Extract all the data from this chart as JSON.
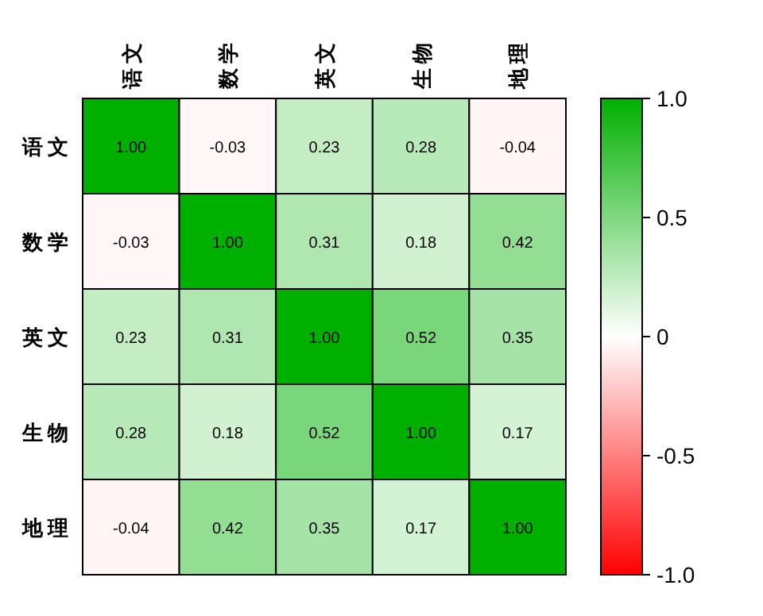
{
  "chart_data": {
    "type": "heatmap",
    "categories": [
      "语文",
      "数学",
      "英文",
      "生物",
      "地理"
    ],
    "y_categories": [
      "语文",
      "数学",
      "英文",
      "生物",
      "地理"
    ],
    "cells": [
      [
        1.0,
        -0.03,
        0.23,
        0.28,
        -0.04
      ],
      [
        -0.03,
        1.0,
        0.31,
        0.18,
        0.42
      ],
      [
        0.23,
        0.31,
        1.0,
        0.52,
        0.35
      ],
      [
        0.28,
        0.18,
        0.52,
        1.0,
        0.17
      ],
      [
        -0.04,
        0.42,
        0.35,
        0.17,
        1.0
      ]
    ],
    "cell_labels": [
      [
        "1.00",
        "-0.03",
        "0.23",
        "0.28",
        "-0.04"
      ],
      [
        "-0.03",
        "1.00",
        "0.31",
        "0.18",
        "0.42"
      ],
      [
        "0.23",
        "0.31",
        "1.00",
        "0.52",
        "0.35"
      ],
      [
        "0.28",
        "0.18",
        "0.52",
        "1.00",
        "0.17"
      ],
      [
        "-0.04",
        "0.42",
        "0.35",
        "0.17",
        "1.00"
      ]
    ],
    "clim": [
      -1,
      1
    ],
    "cticks": [
      {
        "value": 1,
        "label": "1.0"
      },
      0.5,
      0,
      -0.5,
      {
        "value": -1,
        "label": "-1.0"
      }
    ]
  }
}
